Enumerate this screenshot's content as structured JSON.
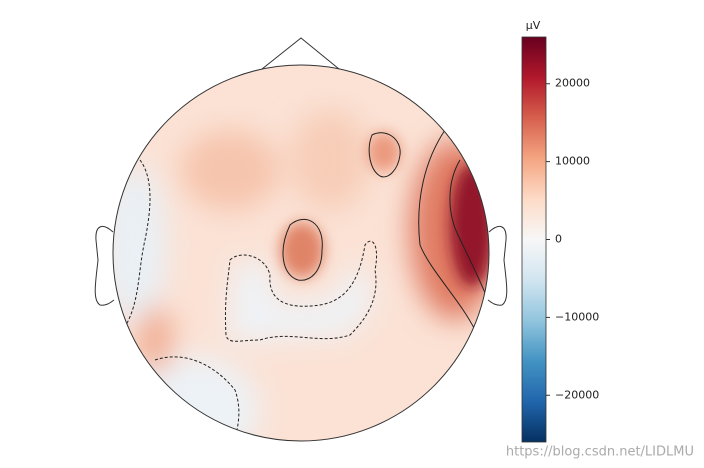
{
  "chart_data": {
    "type": "topomap",
    "colorbar_label": "µV",
    "clim": [
      -26000,
      26000
    ],
    "colorbar_ticks": [
      {
        "value": -20000,
        "label": "−20000"
      },
      {
        "value": -10000,
        "label": "−10000"
      },
      0,
      10000,
      20000
    ],
    "colormap": [
      "#053061",
      "#2166ac",
      "#4393c3",
      "#92c5de",
      "#d1e5f0",
      "#f7f7f7",
      "#fddbc7",
      "#f4a582",
      "#d6604d",
      "#b2182b",
      "#67001f"
    ],
    "watermark": "https://blog.csdn.net/LIDLMU"
  }
}
